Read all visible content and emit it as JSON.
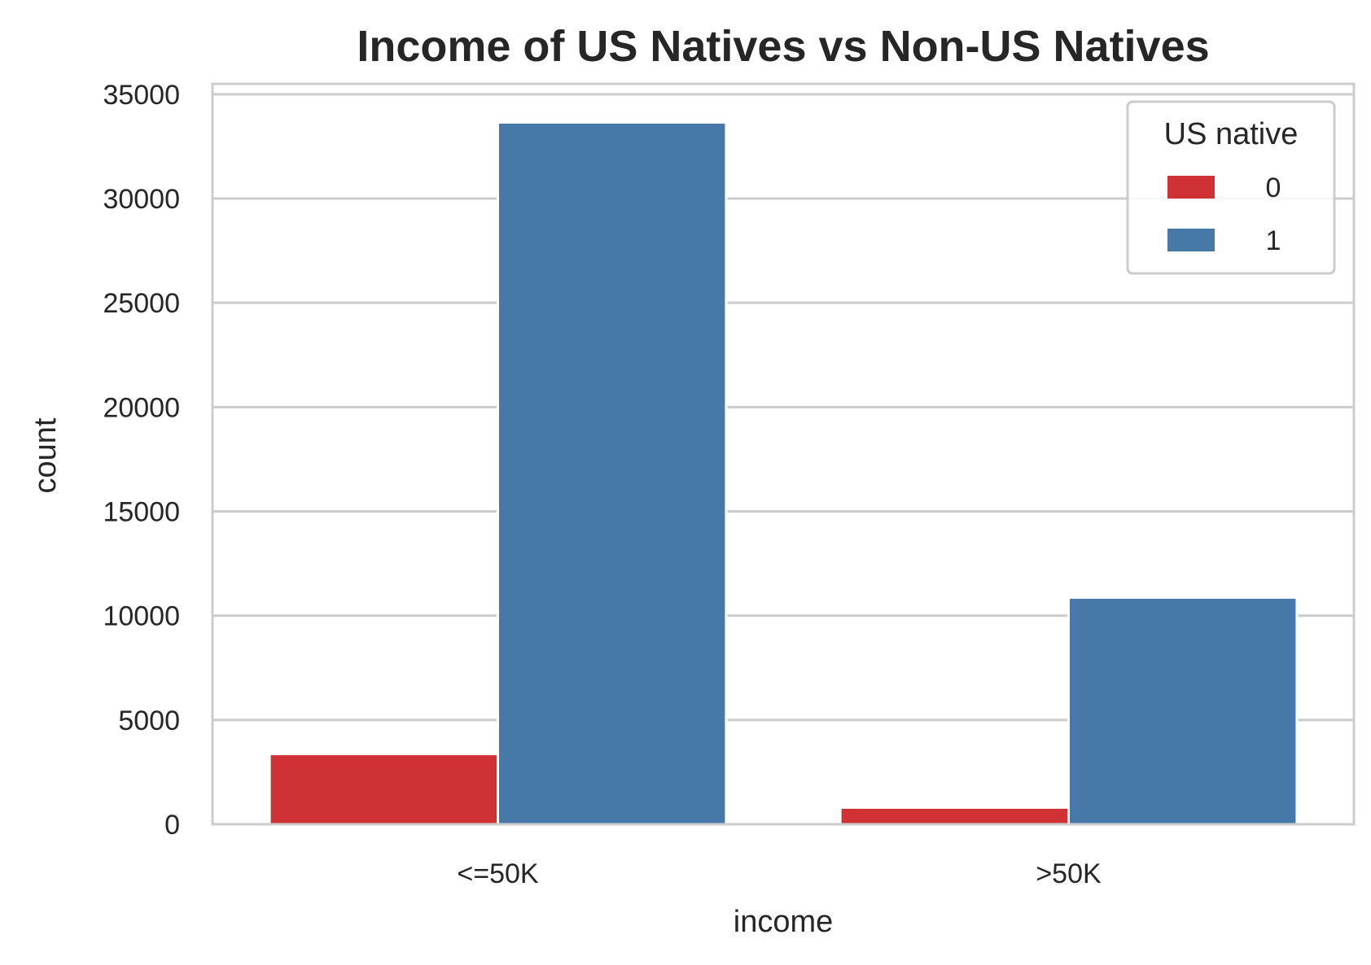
{
  "chart_data": {
    "type": "bar",
    "title": "Income of US Natives vs Non-US Natives",
    "xlabel": "income",
    "ylabel": "count",
    "categories": [
      "<=50K",
      ">50K"
    ],
    "series": [
      {
        "name": "0",
        "values": [
          3370,
          800
        ],
        "color": "#cf3135"
      },
      {
        "name": "1",
        "values": [
          33650,
          10870
        ],
        "color": "#4679a8"
      }
    ],
    "ylim": [
      0,
      35500
    ],
    "yticks": [
      0,
      5000,
      10000,
      15000,
      20000,
      25000,
      30000,
      35000
    ],
    "ytick_labels": [
      "0",
      "5000",
      "10000",
      "15000",
      "20000",
      "25000",
      "30000",
      "35000"
    ],
    "grid": true,
    "legend": {
      "title": "US native",
      "position": "top-right",
      "labels": [
        "0",
        "1"
      ]
    }
  }
}
